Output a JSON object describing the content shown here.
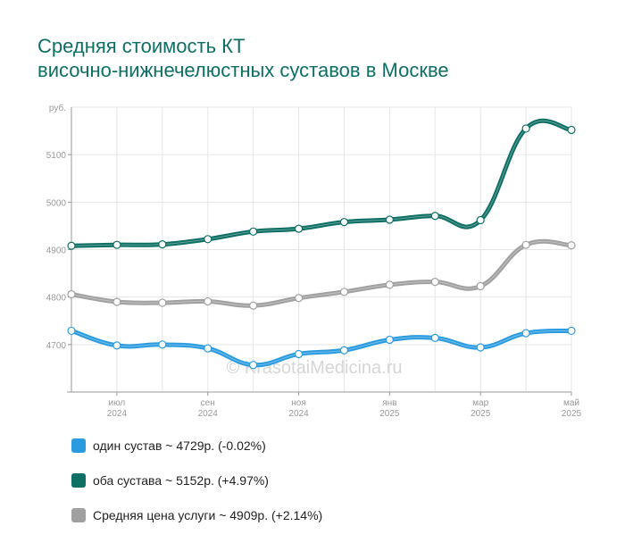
{
  "chart_data": {
    "type": "line",
    "title_lines": [
      "Средняя стоимость КТ",
      "височно-нижнечелюстных суставов в Москве"
    ],
    "y_unit": "руб.",
    "ylim": [
      4600,
      5200
    ],
    "y_ticks": [
      4700,
      4800,
      4900,
      5000,
      5100
    ],
    "x_points": 12,
    "x_tick_labels": [
      {
        "index": 1,
        "month": "июл",
        "year": "2024"
      },
      {
        "index": 3,
        "month": "сен",
        "year": "2024"
      },
      {
        "index": 5,
        "month": "ноя",
        "year": "2024"
      },
      {
        "index": 7,
        "month": "янв",
        "year": "2025"
      },
      {
        "index": 9,
        "month": "мар",
        "year": "2025"
      },
      {
        "index": 11,
        "month": "май",
        "year": "2025"
      }
    ],
    "series": [
      {
        "key": "one",
        "color": "#2b9be0",
        "values": [
          4729,
          4698,
          4700,
          4692,
          4657,
          4680,
          4688,
          4710,
          4714,
          4694,
          4724,
          4729
        ]
      },
      {
        "key": "both",
        "color": "#0e6f64",
        "values": [
          4908,
          4910,
          4911,
          4922,
          4938,
          4944,
          4958,
          4963,
          4971,
          4962,
          5155,
          5152
        ]
      },
      {
        "key": "avg",
        "color": "#a0a0a0",
        "values": [
          4806,
          4790,
          4788,
          4791,
          4782,
          4798,
          4811,
          4826,
          4832,
          4823,
          4910,
          4909
        ]
      }
    ],
    "watermark": "© KrasotaiMedicina.ru",
    "grid": true
  },
  "legend": [
    {
      "color": "#2b9be0",
      "label": "один сустав ~ 4729р. (-0.02%)"
    },
    {
      "color": "#0e6f64",
      "label": "оба сустава ~ 5152р. (+4.97%)"
    },
    {
      "color": "#a0a0a0",
      "label": "Средняя цена услуги ~ 4909р. (+2.14%)"
    }
  ]
}
